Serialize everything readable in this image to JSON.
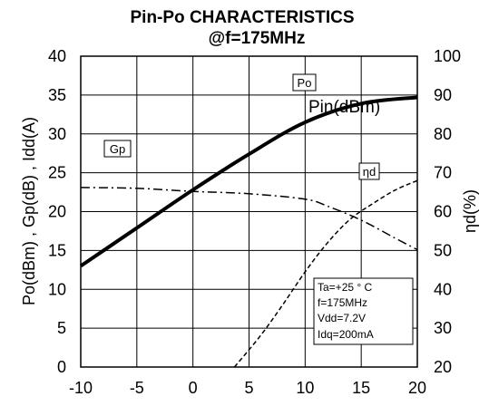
{
  "chart_data": {
    "type": "line",
    "title": "Pin-Po CHARACTERISTICS",
    "subtitle": "@f=175MHz",
    "ylabel": "Po(dBm) , Gp(dB) , Idd(A)",
    "y2label": "ηd(%)",
    "xlim": [
      -10,
      20
    ],
    "ylim": [
      0,
      40
    ],
    "y2lim": [
      20,
      100
    ],
    "xticks": [
      "-10",
      "-5",
      "0",
      "5",
      "10",
      "15",
      "20"
    ],
    "yticks": [
      "0",
      "5",
      "10",
      "15",
      "20",
      "25",
      "30",
      "35",
      "40"
    ],
    "y2ticks": [
      "20",
      "30",
      "40",
      "50",
      "60",
      "70",
      "80",
      "90",
      "100"
    ],
    "grid": true,
    "curve_label": "Pin(dBm)",
    "series": [
      {
        "name": "Po",
        "axis": "left",
        "style": "solid-thick",
        "x": [
          -10,
          -5,
          0,
          5,
          10,
          15,
          20
        ],
        "y": [
          13,
          17.9,
          22.8,
          27.4,
          31.5,
          33.9,
          34.7
        ]
      },
      {
        "name": "Gp",
        "axis": "left",
        "style": "dash-dot",
        "x": [
          -10,
          -5,
          0,
          5,
          10,
          12,
          15,
          18,
          20
        ],
        "y": [
          23.1,
          23,
          22.6,
          22.3,
          21.6,
          20.7,
          18.9,
          16.6,
          15.1
        ]
      },
      {
        "name": "ηd",
        "axis": "right",
        "style": "dashed",
        "x": [
          3.7,
          6,
          8,
          10,
          12,
          14,
          16,
          18,
          20
        ],
        "y": [
          20,
          28,
          36,
          44.5,
          52,
          58,
          62,
          65.5,
          68
        ]
      }
    ],
    "conditions": [
      "Ta=+25 ° C",
      "f=175MHz",
      "Vdd=7.2V",
      "Idq=200mA"
    ]
  }
}
